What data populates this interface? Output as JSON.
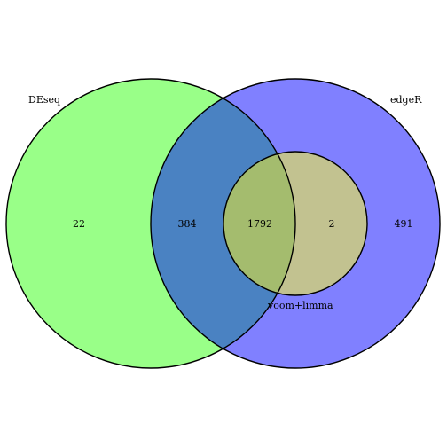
{
  "diagram": {
    "type": "venn",
    "sets": [
      {
        "id": "deseq",
        "label": "DEseq",
        "color": "#99ff88"
      },
      {
        "id": "edger",
        "label": "edgeR",
        "color": "#8080ff"
      },
      {
        "id": "voom",
        "label": "voom+limma",
        "color": "#c2c290"
      }
    ],
    "region_colors": {
      "deseq_edger": "#4a82c2",
      "all_three": "#a4bc6e"
    },
    "regions": [
      {
        "id": "deseq_only",
        "sets": [
          "DEseq"
        ],
        "count": "22"
      },
      {
        "id": "deseq_edger_only",
        "sets": [
          "DEseq",
          "edgeR"
        ],
        "count": "384"
      },
      {
        "id": "all_three",
        "sets": [
          "DEseq",
          "edgeR",
          "voom+limma"
        ],
        "count": "1792"
      },
      {
        "id": "edger_voom_only",
        "sets": [
          "edgeR",
          "voom+limma"
        ],
        "count": "2"
      },
      {
        "id": "edger_only",
        "sets": [
          "edgeR"
        ],
        "count": "491"
      }
    ]
  }
}
